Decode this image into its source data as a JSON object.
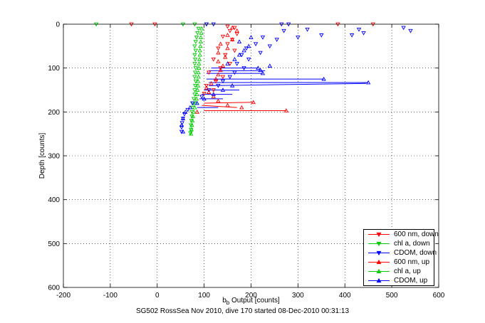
{
  "chart_data": {
    "type": "scatter",
    "title": "",
    "xlabel": {
      "base": "b",
      "sub": "b",
      "rest": " Output [counts]"
    },
    "ylabel": "Depth [counts]",
    "xlim": [
      -200,
      600
    ],
    "ylim": [
      0,
      600
    ],
    "y_reversed": true,
    "grid": true,
    "grid_style": "dotted",
    "legend_placement": "bottom-right",
    "x_ticks": [
      -200,
      -100,
      0,
      100,
      200,
      300,
      400,
      500,
      600
    ],
    "x_tick_labels": [
      "-200",
      "-100",
      "0",
      "100",
      "200",
      "300",
      "400",
      "500",
      "600"
    ],
    "y_ticks": [
      0,
      100,
      200,
      300,
      400,
      500,
      600
    ],
    "y_tick_labels": [
      "0",
      "100",
      "200",
      "300",
      "400",
      "500",
      "600"
    ],
    "series": [
      {
        "name": "600 nm, down",
        "color": "#ff0000",
        "marker": "triangle-down",
        "points": [
          [
            -55,
            0
          ],
          [
            -5,
            0
          ],
          [
            385,
            0
          ],
          [
            460,
            0
          ],
          [
            150,
            5
          ],
          [
            165,
            8
          ],
          [
            155,
            15
          ],
          [
            170,
            22
          ],
          [
            140,
            28
          ],
          [
            160,
            35
          ],
          [
            150,
            45
          ],
          [
            130,
            55
          ],
          [
            165,
            60
          ],
          [
            145,
            70
          ],
          [
            120,
            80
          ],
          [
            155,
            90
          ],
          [
            135,
            100
          ],
          [
            110,
            110
          ],
          [
            140,
            120
          ],
          [
            125,
            130
          ],
          [
            105,
            140
          ],
          [
            120,
            150
          ],
          [
            100,
            158
          ]
        ]
      },
      {
        "name": "chl a, down",
        "color": "#00cc00",
        "marker": "triangle-down",
        "points": [
          [
            -130,
            0
          ],
          [
            55,
            0
          ],
          [
            80,
            0
          ],
          [
            105,
            0
          ],
          [
            88,
            10
          ],
          [
            86,
            20
          ],
          [
            84,
            30
          ],
          [
            82,
            40
          ],
          [
            80,
            50
          ],
          [
            82,
            60
          ],
          [
            80,
            70
          ],
          [
            81,
            80
          ],
          [
            80,
            90
          ],
          [
            82,
            100
          ],
          [
            81,
            110
          ],
          [
            80,
            120
          ],
          [
            82,
            130
          ],
          [
            81,
            140
          ],
          [
            80,
            150
          ],
          [
            80,
            160
          ],
          [
            78,
            170
          ],
          [
            77,
            180
          ],
          [
            76,
            190
          ],
          [
            74,
            200
          ],
          [
            74,
            210
          ],
          [
            73,
            220
          ],
          [
            72,
            230
          ],
          [
            72,
            240
          ],
          [
            71,
            248
          ]
        ]
      },
      {
        "name": "CDOM, down",
        "color": "#0000ff",
        "marker": "triangle-down",
        "points": [
          [
            105,
            0
          ],
          [
            120,
            0
          ],
          [
            265,
            0
          ],
          [
            280,
            0
          ],
          [
            540,
            15
          ],
          [
            525,
            8
          ],
          [
            430,
            12
          ],
          [
            440,
            20
          ],
          [
            415,
            25
          ],
          [
            350,
            25
          ],
          [
            320,
            12
          ],
          [
            270,
            15
          ],
          [
            300,
            30
          ],
          [
            255,
            35
          ],
          [
            225,
            30
          ],
          [
            210,
            45
          ],
          [
            240,
            50
          ],
          [
            190,
            55
          ],
          [
            220,
            65
          ],
          [
            180,
            70
          ],
          [
            195,
            80
          ],
          [
            170,
            90
          ],
          [
            185,
            100
          ],
          [
            165,
            110
          ],
          [
            155,
            120
          ],
          [
            140,
            130
          ],
          [
            130,
            140
          ],
          [
            110,
            150
          ],
          [
            95,
            165
          ],
          [
            75,
            180
          ],
          [
            65,
            195
          ],
          [
            58,
            205
          ],
          [
            55,
            215
          ],
          [
            53,
            225
          ],
          [
            52,
            235
          ],
          [
            52,
            245
          ]
        ]
      },
      {
        "name": "600 nm, up",
        "color": "#ff0000",
        "marker": "triangle-up",
        "points": [
          [
            85,
            200
          ],
          [
            275,
            197
          ],
          [
            205,
            178
          ],
          [
            180,
            190
          ],
          [
            150,
            185
          ],
          [
            130,
            175
          ],
          [
            120,
            165
          ],
          [
            110,
            155
          ],
          [
            105,
            145
          ],
          [
            115,
            135
          ],
          [
            125,
            125
          ],
          [
            130,
            115
          ],
          [
            135,
            105
          ],
          [
            140,
            95
          ],
          [
            130,
            85
          ],
          [
            145,
            75
          ],
          [
            130,
            65
          ],
          [
            150,
            55
          ],
          [
            135,
            45
          ],
          [
            160,
            35
          ],
          [
            150,
            25
          ],
          [
            170,
            15
          ],
          [
            160,
            8
          ]
        ]
      },
      {
        "name": "chl a, up",
        "color": "#00cc00",
        "marker": "triangle-up",
        "points": [
          [
            72,
            250
          ],
          [
            73,
            240
          ],
          [
            74,
            230
          ],
          [
            75,
            220
          ],
          [
            76,
            210
          ],
          [
            78,
            200
          ],
          [
            80,
            190
          ],
          [
            82,
            180
          ],
          [
            84,
            170
          ],
          [
            85,
            160
          ],
          [
            86,
            150
          ],
          [
            87,
            140
          ],
          [
            87,
            130
          ],
          [
            88,
            120
          ],
          [
            88,
            110
          ],
          [
            89,
            100
          ],
          [
            89,
            90
          ],
          [
            90,
            80
          ],
          [
            91,
            70
          ],
          [
            91,
            60
          ],
          [
            92,
            50
          ],
          [
            93,
            40
          ],
          [
            93,
            30
          ],
          [
            94,
            20
          ],
          [
            95,
            10
          ]
        ]
      },
      {
        "name": "CDOM, up",
        "color": "#0000ff",
        "marker": "triangle-up",
        "points": [
          [
            450,
            133
          ],
          [
            355,
            125
          ],
          [
            225,
            112
          ],
          [
            220,
            105
          ],
          [
            215,
            100
          ],
          [
            240,
            95
          ],
          [
            160,
            140
          ],
          [
            140,
            150
          ],
          [
            120,
            160
          ],
          [
            100,
            170
          ],
          [
            85,
            180
          ],
          [
            70,
            190
          ],
          [
            60,
            200
          ],
          [
            55,
            215
          ],
          [
            52,
            230
          ],
          [
            55,
            245
          ],
          [
            150,
            90
          ],
          [
            165,
            80
          ],
          [
            175,
            70
          ],
          [
            185,
            60
          ],
          [
            195,
            50
          ],
          [
            175,
            40
          ],
          [
            200,
            30
          ]
        ]
      }
    ],
    "connected_lines": [
      {
        "color": "#ff0000",
        "from": [
          100,
          197
        ],
        "to": [
          275,
          197
        ]
      },
      {
        "color": "#ff0000",
        "from": [
          100,
          180
        ],
        "to": [
          205,
          178
        ]
      },
      {
        "color": "#0000ff",
        "from": [
          110,
          133
        ],
        "to": [
          450,
          133
        ]
      },
      {
        "color": "#0000ff",
        "from": [
          110,
          140
        ],
        "to": [
          445,
          135
        ]
      },
      {
        "color": "#0000ff",
        "from": [
          105,
          125
        ],
        "to": [
          355,
          125
        ]
      },
      {
        "color": "#0000ff",
        "from": [
          105,
          112
        ],
        "to": [
          225,
          112
        ]
      },
      {
        "color": "#0000ff",
        "from": [
          110,
          106
        ],
        "to": [
          230,
          106
        ]
      },
      {
        "color": "#0000ff",
        "from": [
          115,
          100
        ],
        "to": [
          215,
          100
        ]
      },
      {
        "color": "#0000ff",
        "from": [
          100,
          150
        ],
        "to": [
          175,
          150
        ]
      },
      {
        "color": "#0000ff",
        "from": [
          95,
          160
        ],
        "to": [
          160,
          160
        ]
      },
      {
        "color": "#0000ff",
        "from": [
          90,
          170
        ],
        "to": [
          140,
          170
        ]
      },
      {
        "color": "#ff0000",
        "from": [
          95,
          185
        ],
        "to": [
          170,
          190
        ]
      },
      {
        "color": "#0000ff",
        "from": [
          85,
          190
        ],
        "to": [
          130,
          190
        ]
      }
    ]
  },
  "caption": "SG502 RossSea Nov 2010, dive 170 started 08-Dec-2010 00:31:13"
}
